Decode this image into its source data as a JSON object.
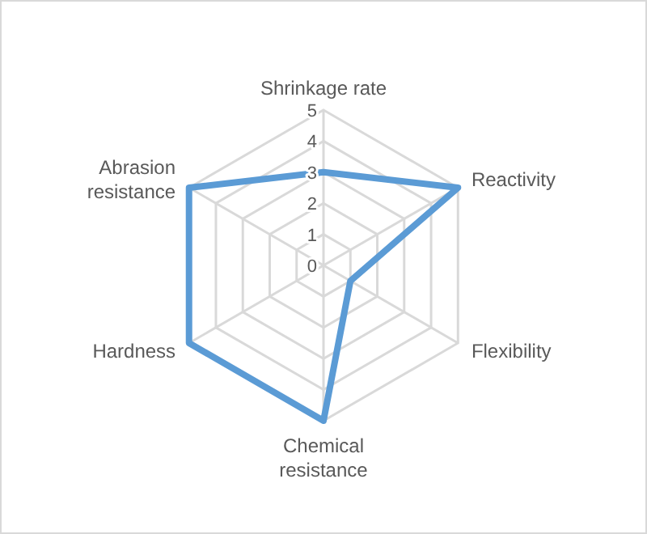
{
  "chart_data": {
    "type": "radar",
    "categories": [
      "Shrinkage rate",
      "Reactivity",
      "Flexibility",
      "Chemical resistance",
      "Hardness",
      "Abrasion resistance"
    ],
    "series": [
      {
        "color": "#5b9bd5",
        "values": [
          3,
          5,
          1,
          5,
          5,
          5
        ]
      }
    ],
    "ylim": [
      0,
      5
    ],
    "yticks": [
      0,
      1,
      2,
      3,
      4,
      5
    ],
    "grid": true
  }
}
